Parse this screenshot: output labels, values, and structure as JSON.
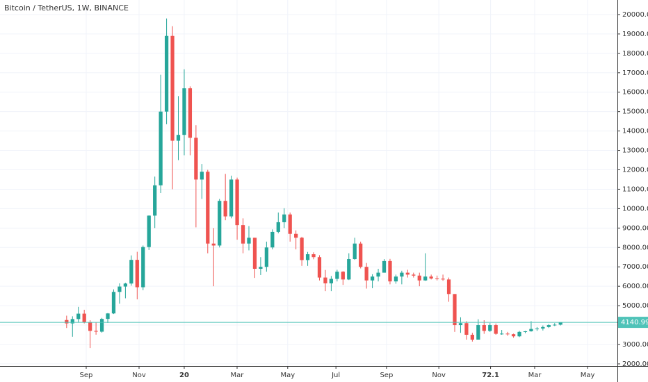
{
  "chart_data": {
    "type": "candlestick",
    "title": "Bitcoin / TetherUS, 1W, BINANCE",
    "up_color": "#26a69a",
    "down_color": "#ef5350",
    "open": [
      4261,
      4086,
      4310,
      4589,
      4150,
      3700,
      3660,
      4318,
      4600,
      5710,
      5985,
      6140,
      7360,
      5950,
      8020,
      9640,
      11200,
      15000,
      18900,
      13500,
      13800,
      16200,
      13650,
      11500,
      11900,
      8200,
      8100,
      10400,
      9600,
      11500,
      9150,
      8200,
      8500,
      6900,
      7000,
      8000,
      8800,
      9300,
      9700,
      8700,
      8500,
      7350,
      7650,
      7500,
      6450,
      6150,
      6380,
      6750,
      6350,
      7400,
      8200,
      7000,
      6300,
      6500,
      6700,
      7300,
      6250,
      6500,
      6700,
      6600,
      6550,
      6300,
      6500,
      6400,
      6390,
      6350,
      5600,
      4000,
      4100,
      3500,
      3250,
      4000,
      3700,
      4000,
      3550,
      3560,
      3530,
      3420,
      3650,
      3680,
      3800,
      3820,
      3900,
      4000,
      4020
    ],
    "high": [
      4485,
      4453,
      4939,
      4788,
      4249,
      4125,
      4370,
      4620,
      5840,
      6150,
      6179,
      7590,
      7776,
      8100,
      9650,
      11650,
      16900,
      19798,
      19400,
      15800,
      17180,
      16300,
      14300,
      12300,
      12000,
      9000,
      10500,
      11788,
      11700,
      11600,
      9500,
      9100,
      8500,
      7500,
      8300,
      8930,
      9800,
      10020,
      9800,
      8880,
      8550,
      7770,
      7750,
      7600,
      6840,
      6530,
      6850,
      6780,
      7700,
      8500,
      8300,
      7200,
      6620,
      6900,
      7400,
      7410,
      6600,
      6800,
      6850,
      6700,
      6700,
      7700,
      6600,
      6550,
      6600,
      6450,
      5600,
      4400,
      4200,
      3600,
      4300,
      4250,
      4100,
      4080,
      3750,
      3650,
      3560,
      3700,
      3700,
      4200,
      3900,
      3980,
      4050,
      4100,
      4150
    ],
    "low": [
      3850,
      3400,
      4124,
      4085,
      2817,
      3505,
      3610,
      4110,
      4570,
      5100,
      5380,
      6030,
      5325,
      5800,
      7870,
      9000,
      10800,
      14350,
      11000,
      12500,
      12750,
      12750,
      9035,
      10500,
      7700,
      6000,
      8000,
      9400,
      9500,
      8400,
      7700,
      7850,
      6430,
      6580,
      6750,
      7900,
      8730,
      9000,
      8300,
      7900,
      7050,
      7050,
      7390,
      6300,
      5750,
      5750,
      6250,
      6070,
      6320,
      7360,
      6920,
      5880,
      5900,
      6250,
      6700,
      6100,
      6130,
      6100,
      6450,
      6450,
      6000,
      6280,
      6350,
      6300,
      6280,
      5200,
      3650,
      3600,
      3250,
      3150,
      3250,
      3550,
      3650,
      3500,
      3500,
      3450,
      3350,
      3380,
      3580,
      3660,
      3700,
      3720,
      3850,
      3950,
      3980
    ],
    "close": [
      4086,
      4310,
      4589,
      4150,
      3700,
      3660,
      4318,
      4600,
      5710,
      5985,
      6140,
      7360,
      5950,
      8020,
      9640,
      11200,
      15000,
      18900,
      13500,
      13800,
      16200,
      13650,
      11500,
      11900,
      8200,
      8100,
      10400,
      9600,
      11500,
      9150,
      8200,
      8500,
      6900,
      7000,
      8000,
      8800,
      9300,
      9700,
      8700,
      8500,
      7350,
      7650,
      7500,
      6450,
      6150,
      6380,
      6750,
      6350,
      7400,
      8200,
      7000,
      6300,
      6500,
      6700,
      7300,
      6250,
      6500,
      6700,
      6600,
      6550,
      6300,
      6500,
      6400,
      6390,
      6350,
      5600,
      4000,
      4100,
      3500,
      3250,
      4000,
      3700,
      4000,
      3550,
      3560,
      3530,
      3420,
      3650,
      3680,
      3800,
      3820,
      3900,
      4000,
      4020,
      4140.99
    ],
    "last_price": 4140.99,
    "last_price_color": "#4fc3b8",
    "xlim": [
      -11.33,
      93.67
    ],
    "xticks": [
      {
        "value": 3.33,
        "label": "Sep"
      },
      {
        "value": 12.32,
        "label": "Nov"
      },
      20.0,
      {
        "value": 28.99,
        "label": "Mar"
      },
      {
        "value": 37.6,
        "label": "May"
      },
      {
        "value": 45.8,
        "label": "Jul"
      },
      {
        "value": 54.4,
        "label": "Sep"
      },
      {
        "value": 63.3,
        "label": "Nov"
      },
      72.1,
      {
        "value": 79.6,
        "label": "Mar"
      },
      {
        "value": 88.6,
        "label": "May"
      }
    ],
    "ylim": [
      1890,
      20750
    ],
    "yticks": [
      {
        "value": 2000,
        "label": "2000.00"
      },
      {
        "value": 3000,
        "label": "3000.00"
      },
      {
        "value": 4000,
        "label": "4000.00"
      },
      {
        "value": 5000,
        "label": "5000.00"
      },
      {
        "value": 6000,
        "label": "6000.00"
      },
      {
        "value": 7000,
        "label": "7000.00"
      },
      {
        "value": 8000,
        "label": "8000.00"
      },
      {
        "value": 9000,
        "label": "9000.00"
      },
      {
        "value": 10000,
        "label": "10000.00"
      },
      {
        "value": 11000,
        "label": "11000.00"
      },
      {
        "value": 12000,
        "label": "12000.00"
      },
      {
        "value": 13000,
        "label": "13000.00"
      },
      {
        "value": 14000,
        "label": "14000.00"
      },
      {
        "value": 15000,
        "label": "15000.00"
      },
      {
        "value": 16000,
        "label": "16000.00"
      },
      {
        "value": 17000,
        "label": "17000.00"
      },
      {
        "value": 18000,
        "label": "18000.00"
      },
      {
        "value": 19000,
        "label": "19000.00"
      },
      {
        "value": 20000,
        "label": "20000.00"
      }
    ],
    "grid": true
  }
}
